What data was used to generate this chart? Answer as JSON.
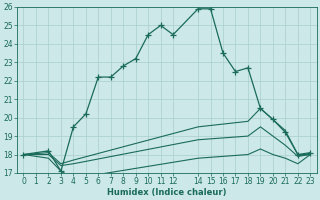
{
  "bg_color": "#cce8e8",
  "grid_color": "#aacece",
  "line_color": "#1a6b5a",
  "xlabel": "Humidex (Indice chaleur)",
  "xlim": [
    -0.5,
    23.5
  ],
  "ylim": [
    17,
    26
  ],
  "xtick_vals": [
    0,
    1,
    2,
    3,
    4,
    5,
    6,
    7,
    8,
    9,
    10,
    11,
    12,
    14,
    15,
    16,
    17,
    18,
    19,
    20,
    21,
    22,
    23
  ],
  "xtick_labels": [
    "0",
    "1",
    "2",
    "3",
    "4",
    "5",
    "6",
    "7",
    "8",
    "9",
    "10",
    "11",
    "12",
    "14",
    "15",
    "16",
    "17",
    "18",
    "19",
    "20",
    "21",
    "22",
    "23"
  ],
  "ytick_vals": [
    17,
    18,
    19,
    20,
    21,
    22,
    23,
    24,
    25,
    26
  ],
  "ytick_labels": [
    "17",
    "18",
    "19",
    "20",
    "21",
    "22",
    "23",
    "24",
    "25",
    "26"
  ],
  "line1_x": [
    0,
    2,
    3,
    4,
    5,
    6,
    7,
    8,
    9,
    10,
    11,
    12,
    14,
    15,
    16,
    17,
    18,
    19,
    20,
    21,
    22,
    23
  ],
  "line1_y": [
    18,
    18.2,
    17.1,
    19.5,
    20.2,
    22.2,
    22.2,
    22.8,
    23.2,
    24.5,
    25.0,
    24.5,
    25.9,
    25.9,
    23.5,
    22.5,
    22.7,
    20.5,
    19.9,
    19.2,
    18.0,
    18.1
  ],
  "line2_x": [
    0,
    2,
    3,
    4,
    14,
    18,
    19,
    20,
    21,
    22,
    23
  ],
  "line2_y": [
    18,
    18.1,
    17.5,
    17.7,
    19.5,
    19.8,
    20.5,
    19.9,
    19.3,
    18.0,
    18.0
  ],
  "line3_x": [
    0,
    2,
    3,
    4,
    14,
    18,
    19,
    20,
    21,
    22,
    23
  ],
  "line3_y": [
    18,
    18.0,
    17.4,
    17.5,
    18.8,
    19.0,
    19.5,
    19.0,
    18.5,
    17.9,
    18.0
  ],
  "line4_x": [
    0,
    2,
    3,
    4,
    14,
    18,
    19,
    20,
    21,
    22,
    23
  ],
  "line4_y": [
    18,
    17.8,
    17.1,
    16.7,
    17.8,
    18.0,
    18.3,
    18.0,
    17.8,
    17.5,
    18.0
  ]
}
